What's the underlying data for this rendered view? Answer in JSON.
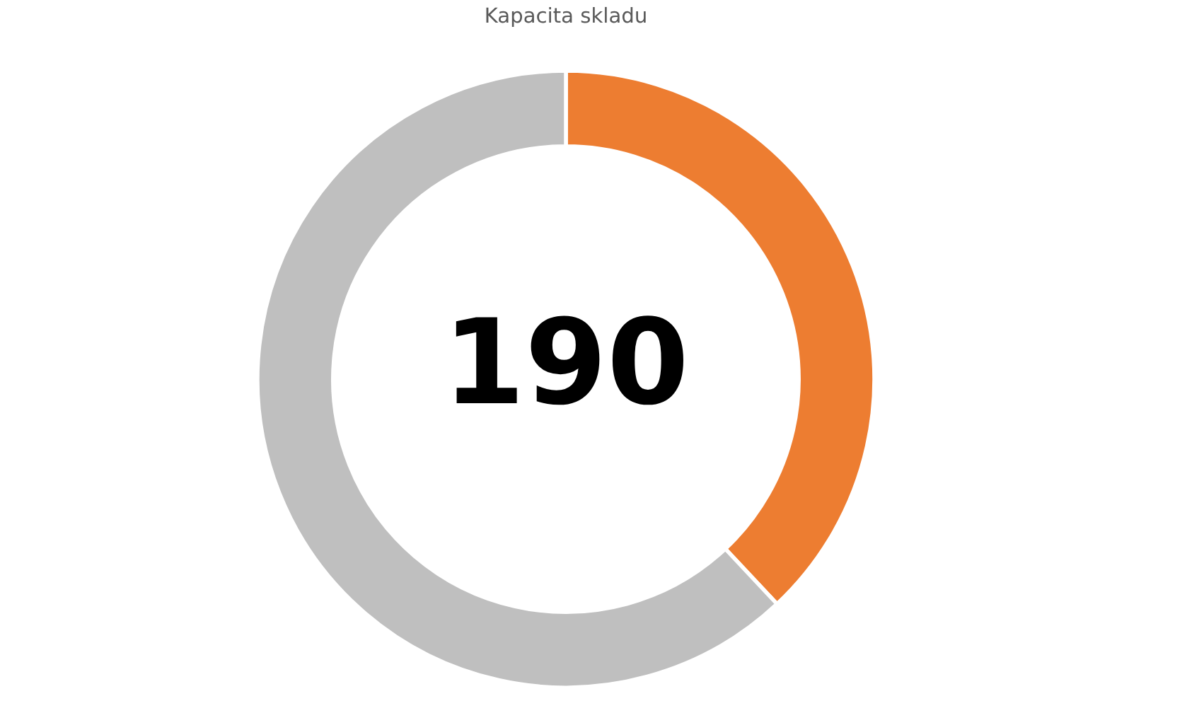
{
  "chart_data": {
    "type": "donut",
    "title": "Kapacita skladu",
    "categories": [
      null,
      null
    ],
    "values": [
      38,
      62
    ],
    "colors": [
      "#ed7d31",
      "#bfbfbf"
    ],
    "annotations": [
      "190"
    ]
  }
}
